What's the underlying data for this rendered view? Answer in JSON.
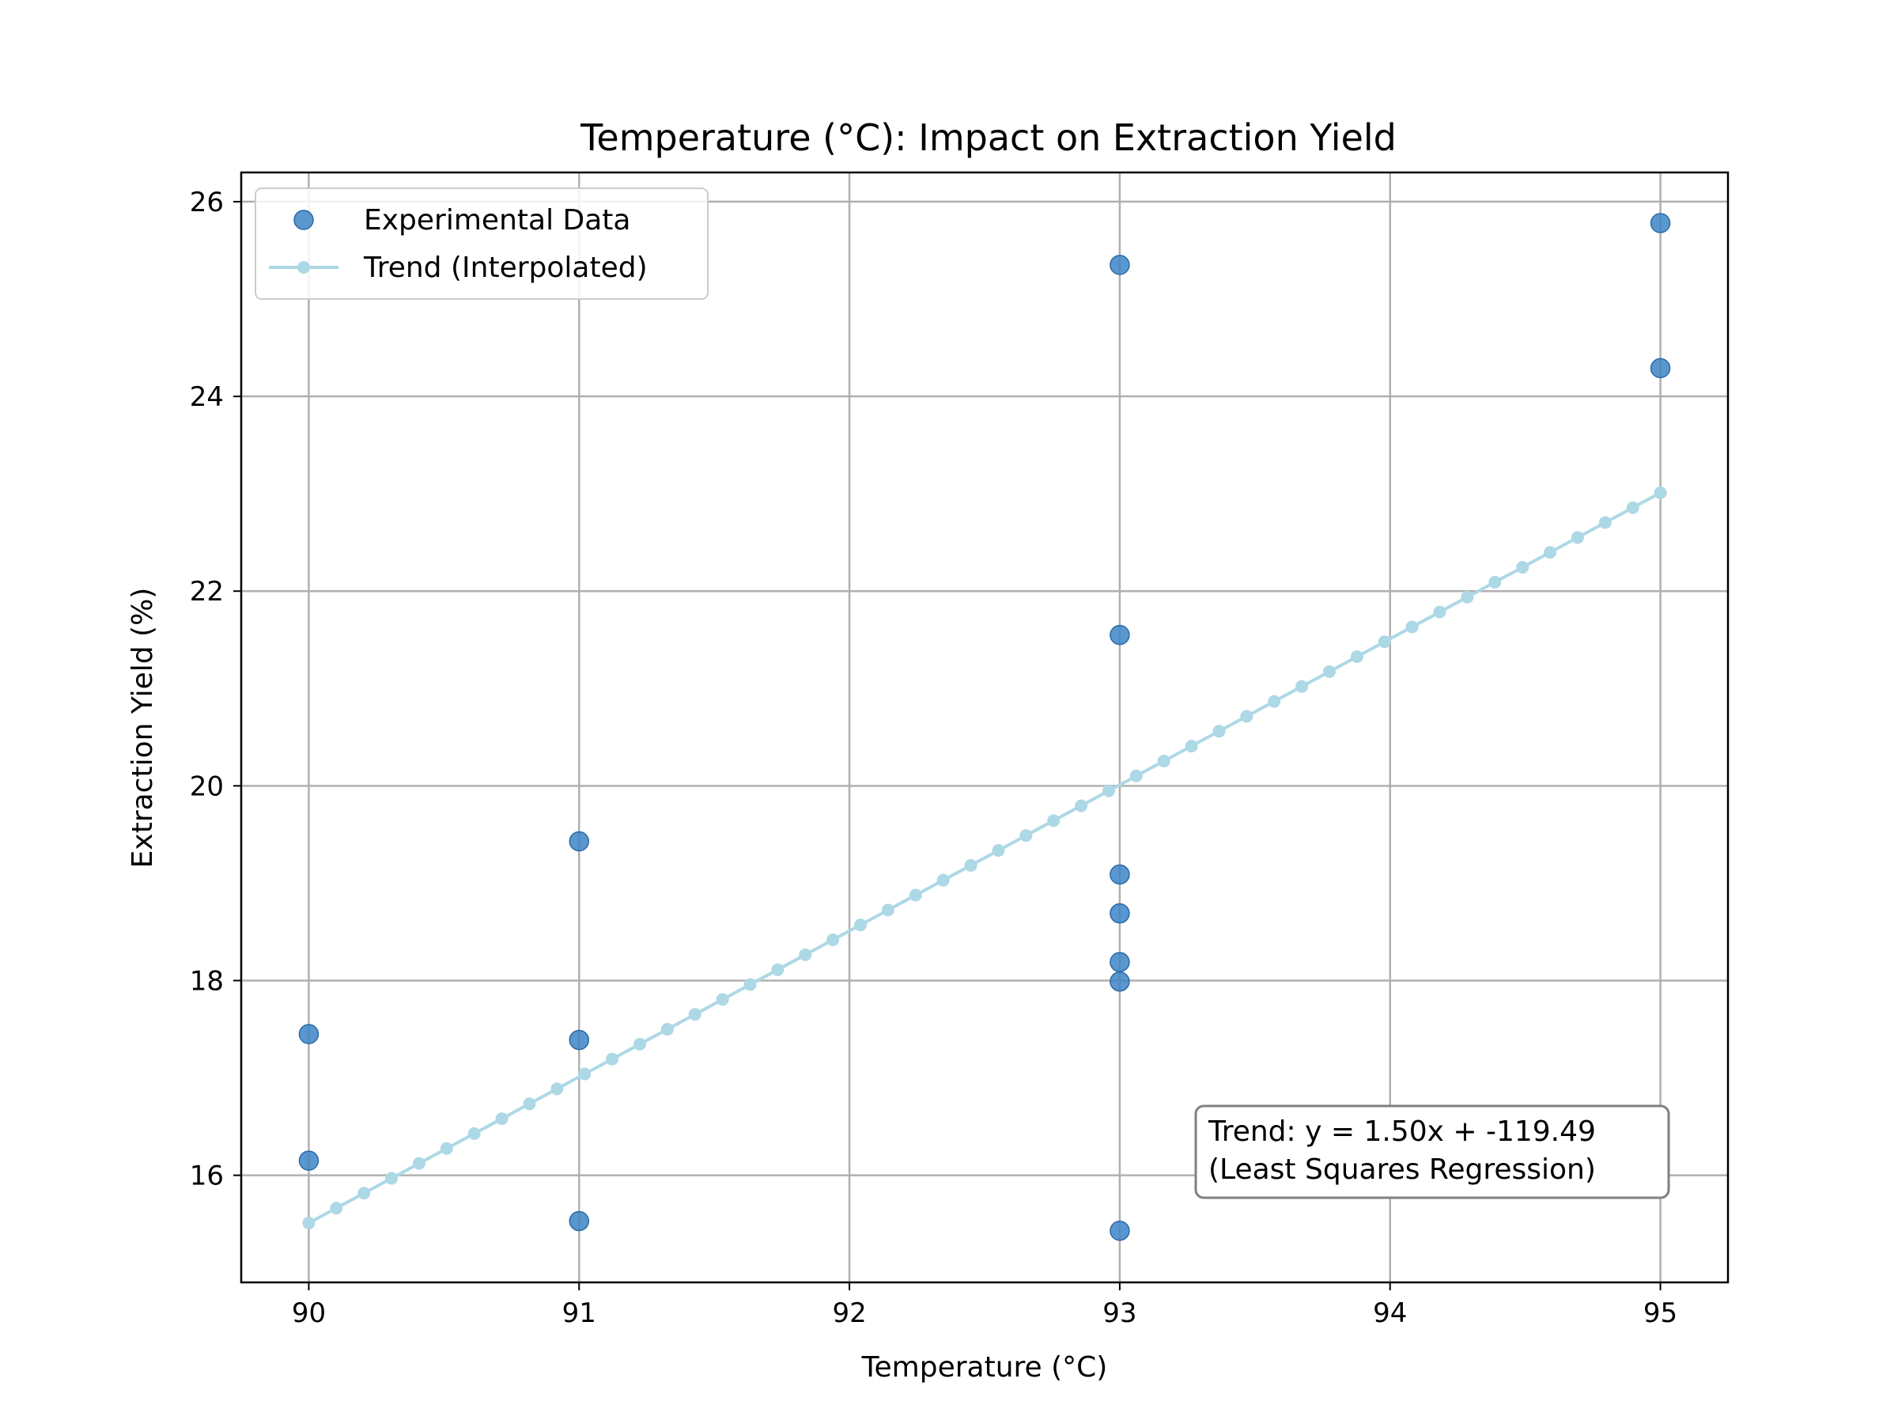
{
  "chart_data": {
    "type": "scatter",
    "title": "Temperature (°C): Impact on Extraction Yield",
    "xlabel": "Temperature (°C)",
    "ylabel": "Extraction Yield (%)",
    "xlim": [
      89.75,
      95.25
    ],
    "ylim": [
      14.9,
      26.3
    ],
    "x_ticks": [
      90,
      91,
      92,
      93,
      94,
      95
    ],
    "y_ticks": [
      16,
      18,
      20,
      22,
      24,
      26
    ],
    "grid": true,
    "legend_position": "top-left",
    "series": [
      {
        "name": "Experimental Data",
        "kind": "scatter",
        "color": "#3d85c6",
        "points": [
          {
            "x": 90,
            "y": 17.45
          },
          {
            "x": 90,
            "y": 16.15
          },
          {
            "x": 91,
            "y": 19.43
          },
          {
            "x": 91,
            "y": 17.39
          },
          {
            "x": 91,
            "y": 15.53
          },
          {
            "x": 93,
            "y": 25.35
          },
          {
            "x": 93,
            "y": 21.55
          },
          {
            "x": 93,
            "y": 19.09
          },
          {
            "x": 93,
            "y": 18.69
          },
          {
            "x": 93,
            "y": 18.19
          },
          {
            "x": 93,
            "y": 17.99
          },
          {
            "x": 93,
            "y": 15.43
          },
          {
            "x": 95,
            "y": 25.78
          },
          {
            "x": 95,
            "y": 24.29
          }
        ]
      },
      {
        "name": "Trend (Interpolated)",
        "kind": "line",
        "color": "#add8e6",
        "slope": 1.5,
        "intercept": -119.49,
        "x_start": 90,
        "x_end": 95,
        "num_points": 50
      }
    ],
    "annotation": {
      "line1": "Trend: y = 1.50x + -119.49",
      "line2": "(Least Squares Regression)"
    }
  }
}
